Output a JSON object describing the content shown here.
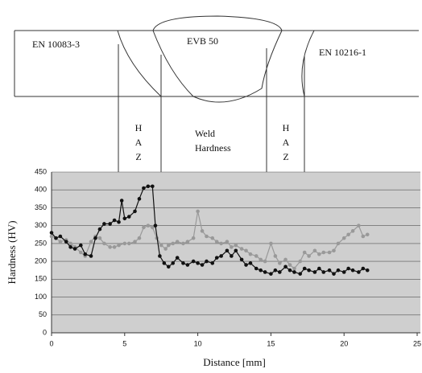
{
  "chart_data": {
    "type": "line",
    "xlabel": "Distance [mm]",
    "ylabel": "Hardness (HV)",
    "xlim": [
      0,
      25
    ],
    "xticks": [
      0,
      5,
      10,
      15,
      20,
      25
    ],
    "ylim": [
      0,
      450
    ],
    "yticks": [
      0,
      50,
      100,
      150,
      200,
      250,
      300,
      350,
      400,
      450
    ],
    "grid": true,
    "labels": {
      "base_left": "EN 10083-3",
      "weld_metal": "EVB 50",
      "base_right": "EN 10216-1",
      "haz_left": [
        "H",
        "A",
        "Z"
      ],
      "weld": [
        "Weld",
        "Hardness"
      ],
      "haz_right": [
        "H",
        "A",
        "Z"
      ]
    },
    "series": [
      {
        "color": "#111111",
        "x": [
          0,
          0.3,
          0.6,
          1,
          1.3,
          1.6,
          2,
          2.3,
          2.7,
          3,
          3.3,
          3.6,
          4,
          4.3,
          4.6,
          4.8,
          5,
          5.3,
          5.7,
          6,
          6.3,
          6.6,
          6.9,
          7.1,
          7.4,
          7.7,
          8,
          8.3,
          8.6,
          9,
          9.3,
          9.7,
          10,
          10.3,
          10.6,
          11,
          11.3,
          11.6,
          12,
          12.3,
          12.6,
          13,
          13.3,
          13.6,
          14,
          14.3,
          14.6,
          15,
          15.3,
          15.6,
          16,
          16.3,
          16.6,
          17,
          17.3,
          17.6,
          18,
          18.3,
          18.6,
          19,
          19.3,
          19.6,
          20,
          20.3,
          20.6,
          21,
          21.3,
          21.6
        ],
        "values": [
          280,
          265,
          270,
          255,
          240,
          235,
          245,
          220,
          215,
          265,
          290,
          305,
          305,
          315,
          310,
          370,
          320,
          325,
          340,
          375,
          405,
          410,
          410,
          300,
          215,
          195,
          185,
          195,
          210,
          195,
          190,
          200,
          195,
          190,
          200,
          195,
          210,
          215,
          230,
          215,
          230,
          205,
          190,
          195,
          180,
          175,
          170,
          165,
          175,
          170,
          185,
          175,
          170,
          165,
          180,
          175,
          170,
          180,
          170,
          175,
          165,
          175,
          170,
          180,
          175,
          170,
          180,
          175
        ]
      },
      {
        "color": "#999999",
        "x": [
          0,
          0.3,
          0.6,
          1,
          1.3,
          1.6,
          2,
          2.3,
          2.7,
          3,
          3.3,
          3.6,
          4,
          4.3,
          4.6,
          5,
          5.3,
          5.7,
          6,
          6.3,
          6.6,
          6.9,
          7.2,
          7.5,
          7.8,
          8,
          8.3,
          8.6,
          9,
          9.3,
          9.7,
          10,
          10.3,
          10.6,
          11,
          11.3,
          11.6,
          12,
          12.3,
          12.6,
          13,
          13.3,
          13.6,
          14,
          14.3,
          14.6,
          15,
          15.3,
          15.6,
          16,
          16.3,
          16.6,
          17,
          17.3,
          17.6,
          18,
          18.3,
          18.6,
          19,
          19.3,
          19.6,
          20,
          20.3,
          20.6,
          21,
          21.3,
          21.6
        ],
        "values": [
          270,
          265,
          255,
          260,
          250,
          240,
          225,
          215,
          255,
          270,
          265,
          250,
          240,
          240,
          245,
          250,
          250,
          255,
          265,
          295,
          300,
          295,
          265,
          245,
          235,
          245,
          250,
          255,
          250,
          255,
          265,
          340,
          285,
          270,
          265,
          255,
          250,
          255,
          240,
          245,
          235,
          230,
          220,
          215,
          205,
          200,
          250,
          215,
          195,
          205,
          190,
          180,
          200,
          225,
          215,
          230,
          220,
          225,
          225,
          230,
          250,
          265,
          275,
          285,
          300,
          270,
          275
        ]
      }
    ]
  }
}
